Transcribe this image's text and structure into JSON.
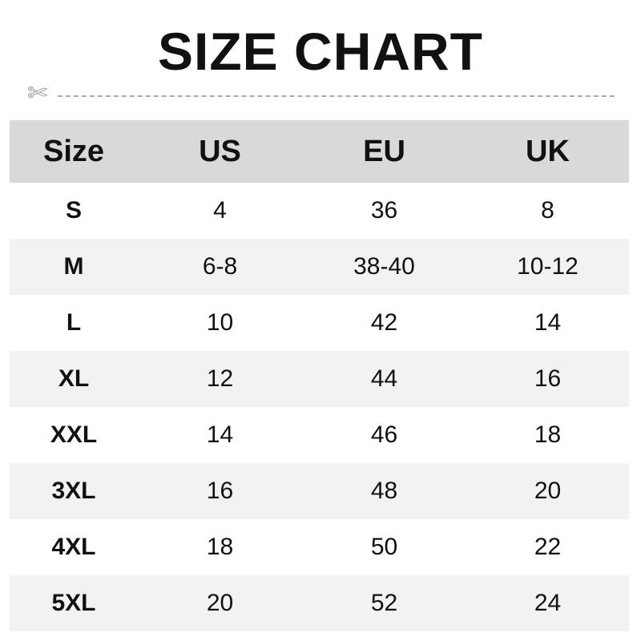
{
  "title": "SIZE CHART",
  "icons": {
    "cut": "scissors-icon"
  },
  "colors": {
    "header_bg": "#d9d9d9",
    "alt_row_bg": "#f2f2f2"
  },
  "table": {
    "headers": [
      "Size",
      "US",
      "EU",
      "UK"
    ],
    "rows": [
      [
        "S",
        "4",
        "36",
        "8"
      ],
      [
        "M",
        "6-8",
        "38-40",
        "10-12"
      ],
      [
        "L",
        "10",
        "42",
        "14"
      ],
      [
        "XL",
        "12",
        "44",
        "16"
      ],
      [
        "XXL",
        "14",
        "46",
        "18"
      ],
      [
        "3XL",
        "16",
        "48",
        "20"
      ],
      [
        "4XL",
        "18",
        "50",
        "22"
      ],
      [
        "5XL",
        "20",
        "52",
        "24"
      ]
    ]
  }
}
